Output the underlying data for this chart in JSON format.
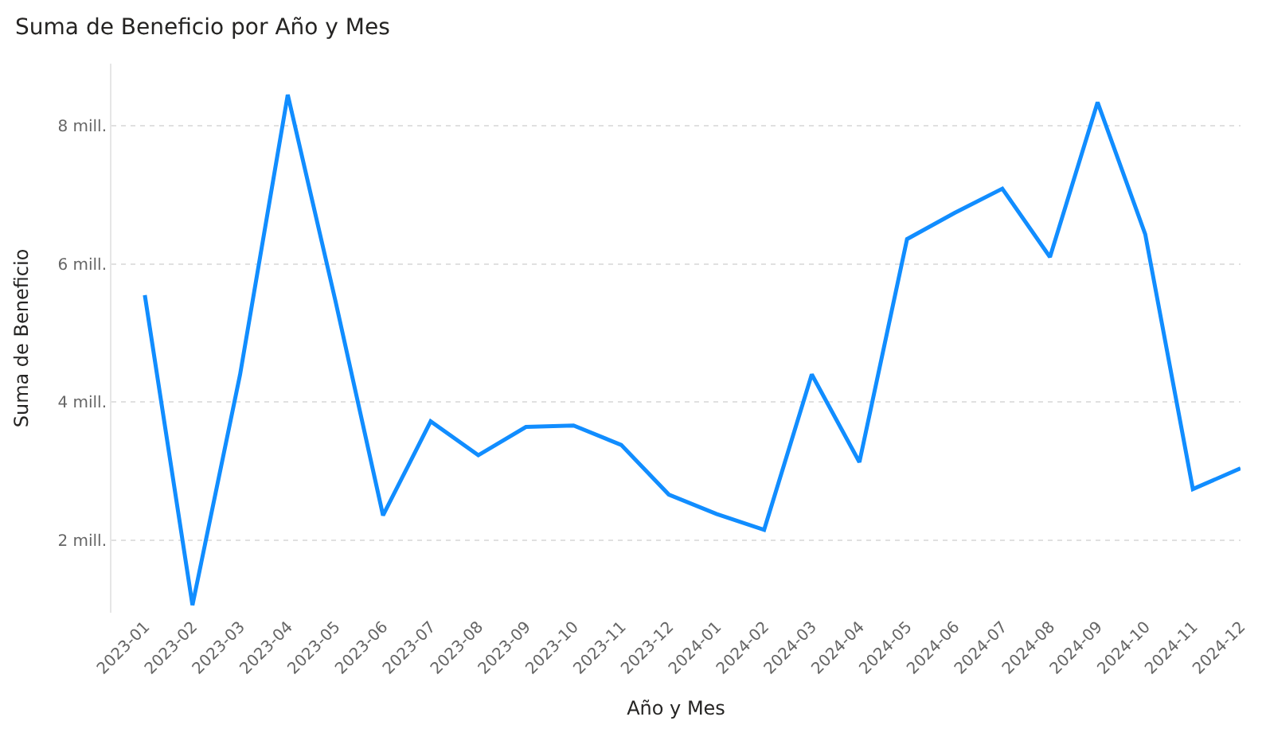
{
  "chart_data": {
    "type": "line",
    "title": "Suma de Beneficio por Año y Mes",
    "xlabel": "Año y Mes",
    "ylabel": "Suma de Beneficio",
    "categories": [
      "2023-01",
      "2023-02",
      "2023-03",
      "2023-04",
      "2023-05",
      "2023-06",
      "2023-07",
      "2023-08",
      "2023-09",
      "2023-10",
      "2023-11",
      "2023-12",
      "2024-01",
      "2024-02",
      "2024-03",
      "2024-04",
      "2024-05",
      "2024-06",
      "2024-07",
      "2024-08",
      "2024-09",
      "2024-10",
      "2024-11",
      "2024-12"
    ],
    "series": [
      {
        "color": "#118dff",
        "values": [
          5.55,
          1.06,
          4.4,
          8.45,
          5.47,
          2.36,
          3.72,
          3.23,
          3.64,
          3.66,
          3.38,
          2.66,
          2.38,
          2.15,
          4.4,
          3.13,
          6.36,
          6.74,
          7.09,
          6.1,
          8.34,
          6.43,
          2.74,
          3.04
        ]
      }
    ],
    "ylim": [
      0.95,
      8.9
    ],
    "yticks": [
      {
        "value": 2,
        "label": "2 mill."
      },
      {
        "value": 4,
        "label": "4 mill."
      },
      {
        "value": 6,
        "label": "6 mill."
      },
      {
        "value": 8,
        "label": "8 mill."
      }
    ],
    "grid": "y",
    "marker": "none",
    "line_style": "solid"
  }
}
